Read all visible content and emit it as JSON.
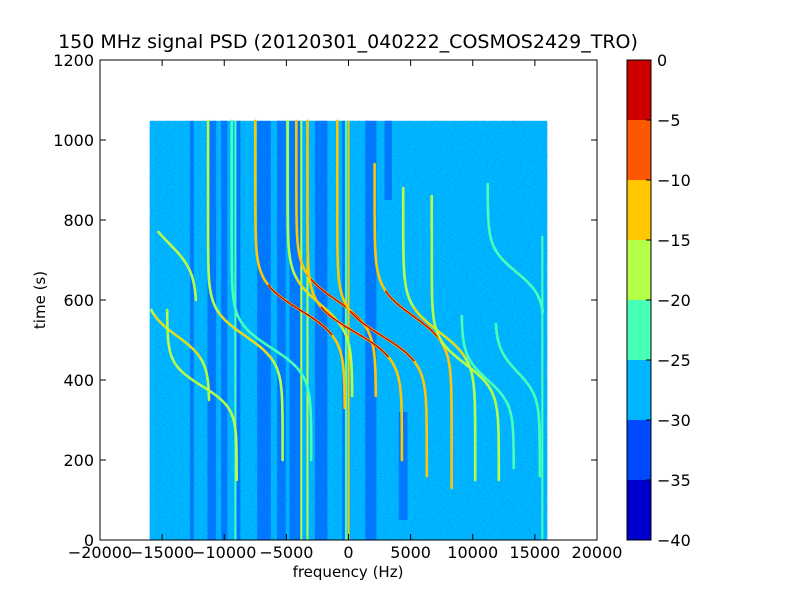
{
  "chart_data": {
    "type": "heatmap",
    "subtype": "filled-contour spectrogram",
    "title": "150 MHz signal PSD (20120301_040222_COSMOS2429_TRO)",
    "xlabel": "frequency (Hz)",
    "ylabel": "time (s)",
    "xlim": [
      -20000,
      20000
    ],
    "ylim": [
      0,
      1200
    ],
    "xticks": [
      -20000,
      -15000,
      -10000,
      -5000,
      0,
      5000,
      10000,
      15000,
      20000
    ],
    "xtick_labels": [
      "−20000",
      "−15000",
      "−10000",
      "−5000",
      "0",
      "5000",
      "10000",
      "15000",
      "20000"
    ],
    "yticks": [
      0,
      200,
      400,
      600,
      800,
      1000,
      1200
    ],
    "ytick_labels": [
      "0",
      "200",
      "400",
      "600",
      "800",
      "1000",
      "1200"
    ],
    "data_extent": {
      "x": [
        -16000,
        16000
      ],
      "y": [
        0,
        1048
      ]
    },
    "background_level": -27.5,
    "colorbar": {
      "ticks": [
        0,
        -5,
        -10,
        -15,
        -20,
        -25,
        -30,
        -35,
        -40
      ],
      "tick_labels": [
        "0",
        "−5",
        "−10",
        "−15",
        "−20",
        "−25",
        "−30",
        "−35",
        "−40"
      ],
      "levels": [
        -40,
        -35,
        -30,
        -25,
        -20,
        -15,
        -10,
        -5,
        0
      ],
      "colors": [
        "#0000cd",
        "#0049ff",
        "#00b6ff",
        "#48ffb6",
        "#b6ff48",
        "#ffc700",
        "#ff5700",
        "#cd0000"
      ]
    },
    "dark_bands": [
      {
        "x": -12600,
        "width": 300,
        "y": [
          0,
          1048
        ]
      },
      {
        "x": -11000,
        "width": 700,
        "y": [
          0,
          1048
        ]
      },
      {
        "x": -10000,
        "width": 500,
        "y": [
          0,
          1048
        ]
      },
      {
        "x": -8900,
        "width": 400,
        "y": [
          0,
          1048
        ]
      },
      {
        "x": -6800,
        "width": 1100,
        "y": [
          0,
          1048
        ]
      },
      {
        "x": -5400,
        "width": 700,
        "y": [
          0,
          1048
        ]
      },
      {
        "x": -4300,
        "width": 900,
        "y": [
          0,
          1048
        ]
      },
      {
        "x": -2200,
        "width": 1000,
        "y": [
          0,
          1048
        ]
      },
      {
        "x": -400,
        "width": 200,
        "y": [
          0,
          1048
        ]
      },
      {
        "x": 1800,
        "width": 900,
        "y": [
          0,
          1048
        ]
      },
      {
        "x": 3200,
        "width": 600,
        "y": [
          850,
          1048
        ]
      },
      {
        "x": 4400,
        "width": 700,
        "y": [
          50,
          320
        ]
      }
    ],
    "vertical_lines": [
      {
        "x": -9100,
        "color": "#48ffb6",
        "y": [
          0,
          1048
        ]
      },
      {
        "x": -3800,
        "color": "#b6ff48",
        "y": [
          0,
          1048
        ]
      },
      {
        "x": -3300,
        "color": "#b6ff48",
        "y": [
          0,
          1048
        ]
      },
      {
        "x": -200,
        "color": "#48ffb6",
        "y": [
          0,
          1048
        ]
      },
      {
        "x": 0,
        "color": "#ffc700",
        "y": [
          0,
          1048
        ]
      },
      {
        "x": 15600,
        "color": "#48ffb6",
        "y": [
          0,
          760
        ]
      }
    ],
    "doppler_tracks": [
      {
        "t0": 510,
        "f0": -13800,
        "A": 2600,
        "T": 60,
        "y": [
          350,
          575
        ],
        "color": "#b6ff48",
        "peak_color": "#ffc700"
      },
      {
        "t0": 385,
        "f0": -11800,
        "A": 2800,
        "T": 55,
        "y": [
          150,
          575
        ],
        "color": "#b6ff48"
      },
      {
        "t0": 740,
        "f0": -14400,
        "A": 2200,
        "T": 70,
        "y": [
          600,
          770
        ],
        "color": "#b6ff48"
      },
      {
        "t0": 510,
        "f0": -8300,
        "A": 3000,
        "T": 65,
        "y": [
          200,
          1048
        ],
        "color": "#b6ff48",
        "peak_color": "#ffc700"
      },
      {
        "t0": 480,
        "f0": -6200,
        "A": 3200,
        "T": 65,
        "y": [
          200,
          1048
        ],
        "color": "#48ffb6"
      },
      {
        "t0": 575,
        "f0": -3900,
        "A": 3600,
        "T": 70,
        "y": [
          330,
          1048
        ],
        "color": "#ffc700",
        "peak_color": "#cd0000"
      },
      {
        "t0": 590,
        "f0": -2300,
        "A": 2600,
        "T": 70,
        "y": [
          360,
          1048
        ],
        "color": "#b6ff48",
        "peak_color": "#ffc700"
      },
      {
        "t0": 600,
        "f0": -1000,
        "A": 3200,
        "T": 70,
        "y": [
          360,
          1048
        ],
        "color": "#ffc700",
        "peak_color": "#cd0000"
      },
      {
        "t0": 520,
        "f0": 500,
        "A": 3800,
        "T": 70,
        "y": [
          200,
          1048
        ],
        "color": "#ffc700",
        "peak_color": "#cd0000"
      },
      {
        "t0": 510,
        "f0": 2700,
        "A": 3600,
        "T": 70,
        "y": [
          160,
          1048
        ],
        "color": "#ffc700",
        "peak_color": "#cd0000"
      },
      {
        "t0": 560,
        "f0": 5200,
        "A": 3100,
        "T": 70,
        "y": [
          130,
          940
        ],
        "color": "#ffc700",
        "peak_color": "#cd0000"
      },
      {
        "t0": 520,
        "f0": 7300,
        "A": 2900,
        "T": 70,
        "y": [
          150,
          880
        ],
        "color": "#b6ff48",
        "peak_color": "#ffc700"
      },
      {
        "t0": 440,
        "f0": 9400,
        "A": 2700,
        "T": 65,
        "y": [
          150,
          860
        ],
        "color": "#b6ff48"
      },
      {
        "t0": 400,
        "f0": 11200,
        "A": 2100,
        "T": 60,
        "y": [
          180,
          560
        ],
        "color": "#48ffb6"
      },
      {
        "t0": 670,
        "f0": 13500,
        "A": 2300,
        "T": 60,
        "y": [
          570,
          890
        ],
        "color": "#48ffb6"
      },
      {
        "t0": 420,
        "f0": 13600,
        "A": 1800,
        "T": 60,
        "y": [
          160,
          540
        ],
        "color": "#48ffb6"
      }
    ]
  }
}
